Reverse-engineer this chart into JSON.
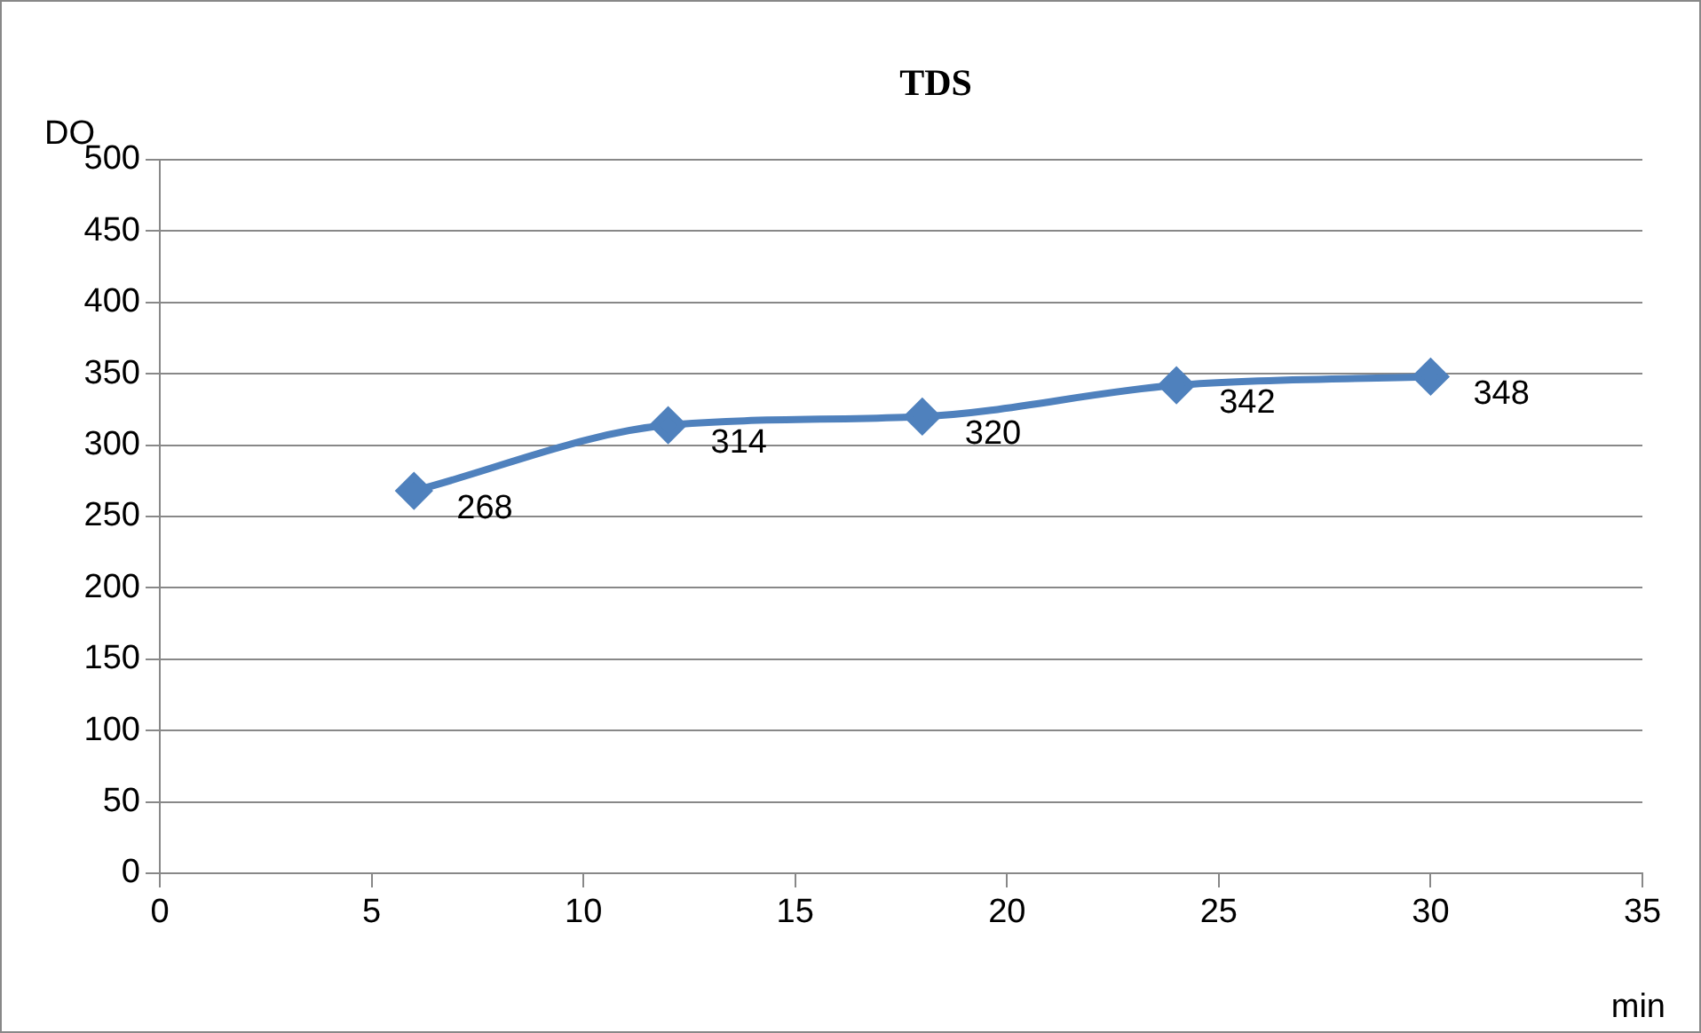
{
  "chart_data": {
    "type": "line",
    "title": "TDS",
    "xlabel": "min",
    "ylabel": "DO",
    "x": [
      6,
      12,
      18,
      24,
      30
    ],
    "series": [
      {
        "color": "#4f81bd",
        "values": [
          268,
          314,
          320,
          342,
          348
        ]
      }
    ],
    "xlim": [
      0,
      35
    ],
    "xticks": [
      0,
      5,
      10,
      15,
      20,
      25,
      30,
      35
    ],
    "ylim": [
      0,
      500
    ],
    "yticks": [
      0,
      50,
      100,
      150,
      200,
      250,
      300,
      350,
      400,
      450,
      500
    ],
    "grid": "y",
    "legend": false,
    "marker": "diamond",
    "line_style": "solid",
    "data_labels": true
  }
}
